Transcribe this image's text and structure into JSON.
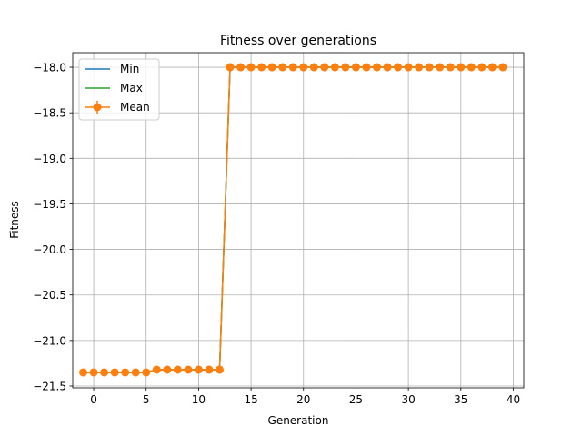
{
  "chart_data": {
    "type": "line",
    "title": "Fitness over generations",
    "xlabel": "Generation",
    "ylabel": "Fitness",
    "xlim": [
      -2.0,
      41.0
    ],
    "ylim": [
      -21.52,
      -17.84
    ],
    "xticks": [
      0,
      5,
      10,
      15,
      20,
      25,
      30,
      35,
      40
    ],
    "xtick_labels": [
      "0",
      "5",
      "10",
      "15",
      "20",
      "25",
      "30",
      "35",
      "40"
    ],
    "yticks": [
      -18.0,
      -18.5,
      -19.0,
      -19.5,
      -20.0,
      -20.5,
      -21.0,
      -21.5
    ],
    "ytick_labels": [
      "−18.0",
      "−18.5",
      "−19.0",
      "−19.5",
      "−20.0",
      "−20.5",
      "−21.0",
      "−21.5"
    ],
    "grid": true,
    "legend_position": "upper-left",
    "x": [
      -1,
      0,
      1,
      2,
      3,
      4,
      5,
      6,
      7,
      8,
      9,
      10,
      11,
      12,
      13,
      14,
      15,
      16,
      17,
      18,
      19,
      20,
      21,
      22,
      23,
      24,
      25,
      26,
      27,
      28,
      29,
      30,
      31,
      32,
      33,
      34,
      35,
      36,
      37,
      38,
      39
    ],
    "series": [
      {
        "name": "Min",
        "color": "#1f77b4",
        "marker": false,
        "values": [
          -21.35,
          -21.35,
          -21.35,
          -21.35,
          -21.35,
          -21.35,
          -21.35,
          -21.32,
          -21.32,
          -21.32,
          -21.32,
          -21.32,
          -21.32,
          -21.32,
          -18.0,
          -18.0,
          -18.0,
          -18.0,
          -18.0,
          -18.0,
          -18.0,
          -18.0,
          -18.0,
          -18.0,
          -18.0,
          -18.0,
          -18.0,
          -18.0,
          -18.0,
          -18.0,
          -18.0,
          -18.0,
          -18.0,
          -18.0,
          -18.0,
          -18.0,
          -18.0,
          -18.0,
          -18.0,
          -18.0,
          -18.0
        ]
      },
      {
        "name": "Max",
        "color": "#2ca02c",
        "marker": false,
        "values": [
          -21.35,
          -21.35,
          -21.35,
          -21.35,
          -21.35,
          -21.35,
          -21.35,
          -21.32,
          -21.32,
          -21.32,
          -21.32,
          -21.32,
          -21.32,
          -21.32,
          -18.0,
          -18.0,
          -18.0,
          -18.0,
          -18.0,
          -18.0,
          -18.0,
          -18.0,
          -18.0,
          -18.0,
          -18.0,
          -18.0,
          -18.0,
          -18.0,
          -18.0,
          -18.0,
          -18.0,
          -18.0,
          -18.0,
          -18.0,
          -18.0,
          -18.0,
          -18.0,
          -18.0,
          -18.0,
          -18.0,
          -18.0
        ]
      },
      {
        "name": "Mean",
        "color": "#ff7f0e",
        "marker": true,
        "values": [
          -21.35,
          -21.35,
          -21.35,
          -21.35,
          -21.35,
          -21.35,
          -21.35,
          -21.32,
          -21.32,
          -21.32,
          -21.32,
          -21.32,
          -21.32,
          -21.32,
          -18.0,
          -18.0,
          -18.0,
          -18.0,
          -18.0,
          -18.0,
          -18.0,
          -18.0,
          -18.0,
          -18.0,
          -18.0,
          -18.0,
          -18.0,
          -18.0,
          -18.0,
          -18.0,
          -18.0,
          -18.0,
          -18.0,
          -18.0,
          -18.0,
          -18.0,
          -18.0,
          -18.0,
          -18.0,
          -18.0,
          -18.0
        ]
      }
    ]
  }
}
